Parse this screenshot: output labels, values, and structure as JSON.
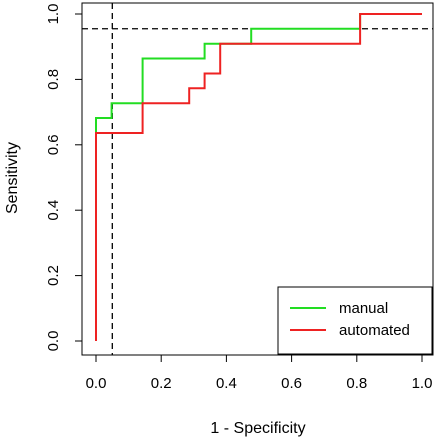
{
  "chart_data": {
    "type": "line",
    "xlabel": "1 - Specificity",
    "ylabel": "Sensitivity",
    "xlim": [
      0,
      1
    ],
    "ylim": [
      0,
      1
    ],
    "xticks": [
      "0.0",
      "0.2",
      "0.4",
      "0.6",
      "0.8",
      "1.0"
    ],
    "yticks": [
      "0.0",
      "0.2",
      "0.4",
      "0.6",
      "0.8",
      "1.0"
    ],
    "grid": false,
    "legend_position": "bottom-right",
    "reference_lines": {
      "vertical_x": 0.05,
      "horizontal_y": 0.955
    },
    "series": [
      {
        "name": "manual",
        "color": "#22dd22",
        "x": [
          0,
          0,
          0.048,
          0.048,
          0.143,
          0.143,
          0.333,
          0.333,
          0.476,
          0.476,
          0.81,
          0.81,
          1.0
        ],
        "y": [
          0,
          0.682,
          0.682,
          0.727,
          0.727,
          0.864,
          0.864,
          0.909,
          0.909,
          0.955,
          0.955,
          1.0,
          1.0
        ]
      },
      {
        "name": "automated",
        "color": "#ee2222",
        "x": [
          0,
          0,
          0.143,
          0.143,
          0.286,
          0.286,
          0.333,
          0.333,
          0.381,
          0.381,
          0.81,
          0.81,
          1.0
        ],
        "y": [
          0,
          0.636,
          0.636,
          0.727,
          0.727,
          0.773,
          0.773,
          0.818,
          0.818,
          0.909,
          0.909,
          1.0,
          1.0
        ]
      }
    ]
  }
}
